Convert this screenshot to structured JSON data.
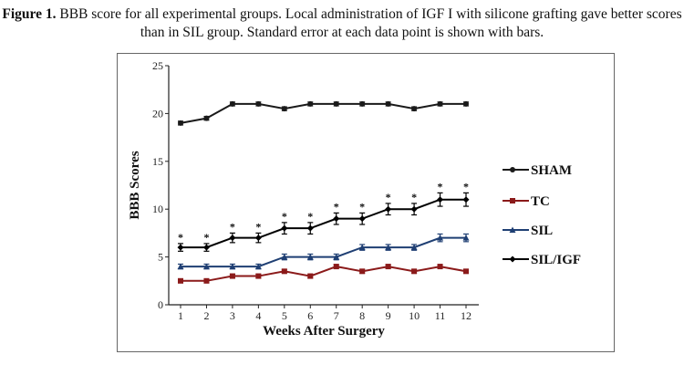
{
  "caption": {
    "label": "Figure 1.",
    "text": "BBB score for all experimental groups. Local administration of IGF I with silicone grafting gave better scores than in SIL group. Standard error at each data point is shown with bars."
  },
  "chart_data": {
    "type": "line",
    "title": "",
    "xlabel": "Weeks After Surgery",
    "ylabel": "BBB Scores",
    "x": [
      1,
      2,
      3,
      4,
      5,
      6,
      7,
      8,
      9,
      10,
      11,
      12
    ],
    "xticks": [
      "1",
      "2",
      "3",
      "4",
      "5",
      "6",
      "7",
      "8",
      "9",
      "10",
      "11",
      "12"
    ],
    "yticks": [
      "0",
      "5",
      "10",
      "15",
      "20",
      "25"
    ],
    "ylim": [
      0,
      25
    ],
    "grid": false,
    "legend_position": "right",
    "series": [
      {
        "name": "SHAM",
        "color": "#1a1a1a",
        "marker": "circle",
        "values": [
          19,
          19.5,
          21,
          21,
          20.5,
          21,
          21,
          21,
          21,
          20.5,
          21,
          21
        ],
        "error": [
          0.2,
          0.2,
          0.2,
          0.2,
          0.2,
          0.2,
          0.2,
          0.2,
          0.2,
          0.2,
          0.2,
          0.2
        ]
      },
      {
        "name": "TC",
        "color": "#8b1a1a",
        "marker": "square",
        "values": [
          2.5,
          2.5,
          3,
          3,
          3.5,
          3,
          4,
          3.5,
          4,
          3.5,
          4,
          3.5
        ],
        "error": [
          0.2,
          0.2,
          0.2,
          0.2,
          0.2,
          0.2,
          0.2,
          0.2,
          0.2,
          0.2,
          0.2,
          0.2
        ]
      },
      {
        "name": "SIL",
        "color": "#1f3f73",
        "marker": "triangle",
        "values": [
          4,
          4,
          4,
          4,
          5,
          5,
          5,
          6,
          6,
          6,
          7,
          7
        ],
        "error": [
          0.25,
          0.25,
          0.25,
          0.25,
          0.3,
          0.3,
          0.3,
          0.3,
          0.3,
          0.3,
          0.4,
          0.4
        ]
      },
      {
        "name": "SIL/IGF",
        "color": "#000000",
        "marker": "diamond",
        "values": [
          6,
          6,
          7,
          7,
          8,
          8,
          9,
          9,
          10,
          10,
          11,
          11
        ],
        "error": [
          0.4,
          0.4,
          0.5,
          0.5,
          0.6,
          0.6,
          0.6,
          0.6,
          0.6,
          0.6,
          0.7,
          0.7
        ],
        "annotations": [
          "*",
          "*",
          "*",
          "*",
          "*",
          "*",
          "*",
          "*",
          "*",
          "*",
          "*",
          "*"
        ]
      }
    ]
  }
}
